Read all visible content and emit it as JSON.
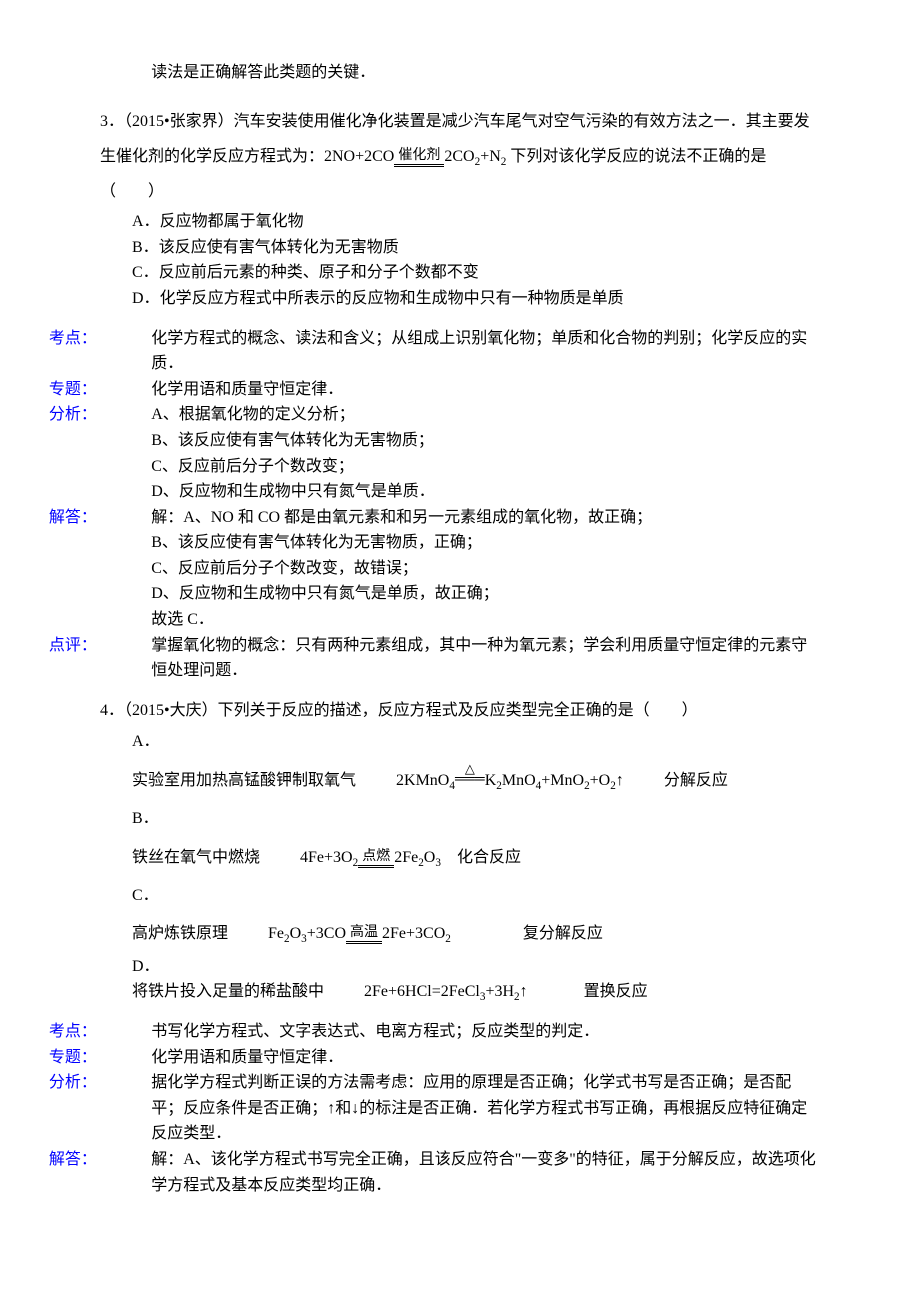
{
  "colors": {
    "text": "#000000",
    "highlight": "#0000ff",
    "background": "#ffffff",
    "rule": "#000000"
  },
  "fonts": {
    "body_family": "SimSun",
    "body_size_pt": 12,
    "cond_size_pt": 10
  },
  "top_fragment": "读法是正确解答此类题的关键．",
  "q3": {
    "stem_a": "3．（2015•张家界）汽车安装使用催化净化装置是减少汽车尾气对空气污染的有效方法之一．其主要发生催化剂的化学反应方程式为：2NO+2CO",
    "cond": "催化剂",
    "stem_b": "2CO",
    "stem_b_sub": "2",
    "stem_c": "+N",
    "stem_c_sub": "2",
    "stem_d": " 下列对该化学反应的说法不正确的是（　　）",
    "opts": {
      "A": "反应物都属于氧化物",
      "B": "该反应使有害气体转化为无害物质",
      "C": "反应前后元素的种类、原子和分子个数都不变",
      "D": "化学反应方程式中所表示的反应物和生成物中只有一种物质是单质"
    },
    "kaodian_label": "考点：",
    "kaodian": "化学方程式的概念、读法和含义；从组成上识别氧化物；单质和化合物的判别；化学反应的实质．",
    "zhuanti_label": "专题：",
    "zhuanti": "化学用语和质量守恒定律．",
    "fenxi_label": "分析：",
    "fenxi_lines": [
      "A、根据氧化物的定义分析；",
      "B、该反应使有害气体转化为无害物质；",
      "C、反应前后分子个数改变；",
      "D、反应物和生成物中只有氮气是单质．"
    ],
    "jieda_label": "解答：",
    "jieda_lines": [
      "解：A、NO 和 CO 都是由氧元素和和另一元素组成的氧化物，故正确；",
      "B、该反应使有害气体转化为无害物质，正确；",
      "C、反应前后分子个数改变，故错误；",
      "D、反应物和生成物中只有氮气是单质，故正确；",
      "故选 C．"
    ],
    "dianping_label": "点评：",
    "dianping": "掌握氧化物的概念：只有两种元素组成，其中一种为氧元素；学会利用质量守恒定律的元素守恒处理问题．"
  },
  "q4": {
    "stem": "4．（2015•大庆）下列关于反应的描述，反应方程式及反应类型完全正确的是（　　）",
    "A": {
      "desc": "实验室用加热高锰酸钾制取氧气",
      "eq_left": "2KMnO",
      "eq_left_sub": "4",
      "cond": "△",
      "eq_right_1": "K",
      "eq_right_1_sub": "2",
      "eq_right_2": "MnO",
      "eq_right_2_sub": "4",
      "eq_right_3": "+MnO",
      "eq_right_3_sub": "2",
      "eq_right_4": "+O",
      "eq_right_4_sub": "2",
      "eq_right_5": "↑",
      "type": "分解反应"
    },
    "B": {
      "desc": "铁丝在氧气中燃烧",
      "eq_left_1": "4Fe+3O",
      "eq_left_1_sub": "2",
      "cond": "点燃",
      "eq_right_1": "2Fe",
      "eq_right_1_sub": "2",
      "eq_right_2": "O",
      "eq_right_2_sub": "3",
      "type": "化合反应"
    },
    "C": {
      "desc": "高炉炼铁原理",
      "eq_left_1": "Fe",
      "eq_left_1_sub": "2",
      "eq_left_2": "O",
      "eq_left_2_sub": "3",
      "eq_left_3": "+3CO",
      "cond": "高温",
      "eq_right_1": "2Fe+3CO",
      "eq_right_1_sub": "2",
      "type": "复分解反应"
    },
    "D": {
      "desc": "将铁片投入足量的稀盐酸中",
      "eq": "2Fe+6HCl=2FeCl",
      "eq_sub1": "3",
      "eq2": "+3H",
      "eq_sub2": "2",
      "eq3": "↑",
      "type": "置换反应"
    },
    "kaodian_label": "考点：",
    "kaodian": "书写化学方程式、文字表达式、电离方程式；反应类型的判定．",
    "zhuanti_label": "专题：",
    "zhuanti": "化学用语和质量守恒定律．",
    "fenxi_label": "分析：",
    "fenxi": "据化学方程式判断正误的方法需考虑：应用的原理是否正确；化学式书写是否正确；是否配平；反应条件是否正确；↑和↓的标注是否正确．若化学方程式书写正确，再根据反应特征确定反应类型．",
    "jieda_label": "解答：",
    "jieda": "解：A、该化学方程式书写完全正确，且该反应符合\"一变多\"的特征，属于分解反应，故选项化学方程式及基本反应类型均正确．"
  },
  "letters": {
    "A": "A．",
    "B": "B．",
    "C": "C．",
    "D": "D．"
  },
  "opt_letters_q3": {
    "A": "A．",
    "B": "B．",
    "C": "C．",
    "D": "D．"
  }
}
